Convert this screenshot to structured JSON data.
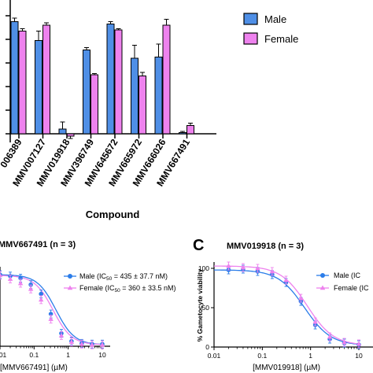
{
  "top_panel": {
    "xlabel": "Compound",
    "legend": [
      {
        "label": "Male",
        "color": "#4f8fe6"
      },
      {
        "label": "Female",
        "color": "#ee82ee"
      }
    ]
  },
  "panel_b": {
    "title": "MMV667491 (n = 3)",
    "xlabel_prefix": "[MMV667491] (",
    "xlabel_unit": "µM",
    "xlabel_suffix": ")",
    "legend": [
      {
        "label": "Male (IC",
        "sub": "50",
        "rest": " = 435 ± 37.7 nM)",
        "color": "#2b7de9"
      },
      {
        "label": "Female (IC",
        "sub": "50",
        "rest": " = 360 ± 33.5 nM)",
        "color": "#ee82ee"
      }
    ]
  },
  "panel_c": {
    "letter": "C",
    "title": "MMV019918 (n = 3)",
    "ylabel": "% Gametocyte viability",
    "xlabel_prefix": "[MMV019918] (",
    "xlabel_unit": "µM",
    "xlabel_suffix": ")",
    "legend": [
      {
        "label": "Male (IC",
        "color": "#2b7de9"
      },
      {
        "label": "Female (IC",
        "color": "#ee82ee"
      }
    ]
  },
  "chart_data": [
    {
      "type": "bar",
      "categories": [
        "006389",
        "MMV007127",
        "MMV019918",
        "MMV396749",
        "MMV645672",
        "MMV665972",
        "MMV666026",
        "MMV667491"
      ],
      "xlabel": "Compound",
      "ylim": [
        -10,
        105
      ],
      "yticks": [
        0,
        20,
        40,
        60,
        80,
        100
      ],
      "series": [
        {
          "name": "Male",
          "color": "#4f8fe6",
          "values": [
            95,
            79,
            4,
            71,
            93,
            64,
            65,
            1
          ],
          "errors": [
            3,
            8,
            6,
            2,
            2,
            11,
            11,
            1
          ]
        },
        {
          "name": "Female",
          "color": "#ee82ee",
          "values": [
            87,
            92,
            -2,
            50,
            88,
            49,
            92,
            7
          ],
          "errors": [
            2,
            2,
            2,
            1,
            1,
            3,
            5,
            2
          ]
        }
      ]
    },
    {
      "type": "scatter",
      "title": "MMV667491 (n = 3)",
      "x_scale": "log",
      "xlim": [
        0.01,
        10
      ],
      "xticks": [
        0.01,
        0.1,
        1,
        10
      ],
      "ylim": [
        0,
        110
      ],
      "series": [
        {
          "name": "Male (IC50 = 435 ± 37.7 nM)",
          "color": "#2b7de9",
          "marker": "circle",
          "x": [
            0.01,
            0.02,
            0.04,
            0.08,
            0.16,
            0.31,
            0.63,
            1.25,
            2.5,
            5,
            10
          ],
          "y": [
            100,
            98,
            95,
            86,
            73,
            45,
            18,
            7,
            4,
            3,
            3
          ],
          "ic50": 0.435
        },
        {
          "name": "Female (IC50 = 360 ± 33.5 nM)",
          "color": "#ee82ee",
          "marker": "triangle",
          "x": [
            0.01,
            0.02,
            0.04,
            0.08,
            0.16,
            0.31,
            0.63,
            1.25,
            2.5,
            5,
            10
          ],
          "y": [
            99,
            94,
            88,
            80,
            65,
            38,
            15,
            6,
            3,
            2,
            2
          ],
          "ic50": 0.36
        }
      ]
    },
    {
      "type": "scatter",
      "title": "MMV019918 (n = 3)",
      "ylabel": "% Gametocyte viability",
      "x_scale": "log",
      "xlim": [
        0.01,
        10
      ],
      "xticks": [
        0.01,
        0.1,
        1,
        10
      ],
      "ylim": [
        0,
        110
      ],
      "yticks": [
        0,
        50,
        100
      ],
      "series": [
        {
          "name": "Male (IC",
          "color": "#2b7de9",
          "marker": "circle",
          "x": [
            0.02,
            0.04,
            0.08,
            0.16,
            0.31,
            0.63,
            1.25,
            2.5,
            5,
            10
          ],
          "y": [
            98,
            99,
            96,
            92,
            82,
            58,
            28,
            10,
            5,
            3
          ],
          "ic50": 0.75
        },
        {
          "name": "Female (IC",
          "color": "#ee82ee",
          "marker": "triangle",
          "x": [
            0.02,
            0.04,
            0.08,
            0.16,
            0.31,
            0.63,
            1.25,
            2.5,
            5,
            10
          ],
          "y": [
            103,
            101,
            100,
            96,
            85,
            62,
            32,
            13,
            6,
            4
          ],
          "ic50": 0.85
        }
      ]
    }
  ]
}
